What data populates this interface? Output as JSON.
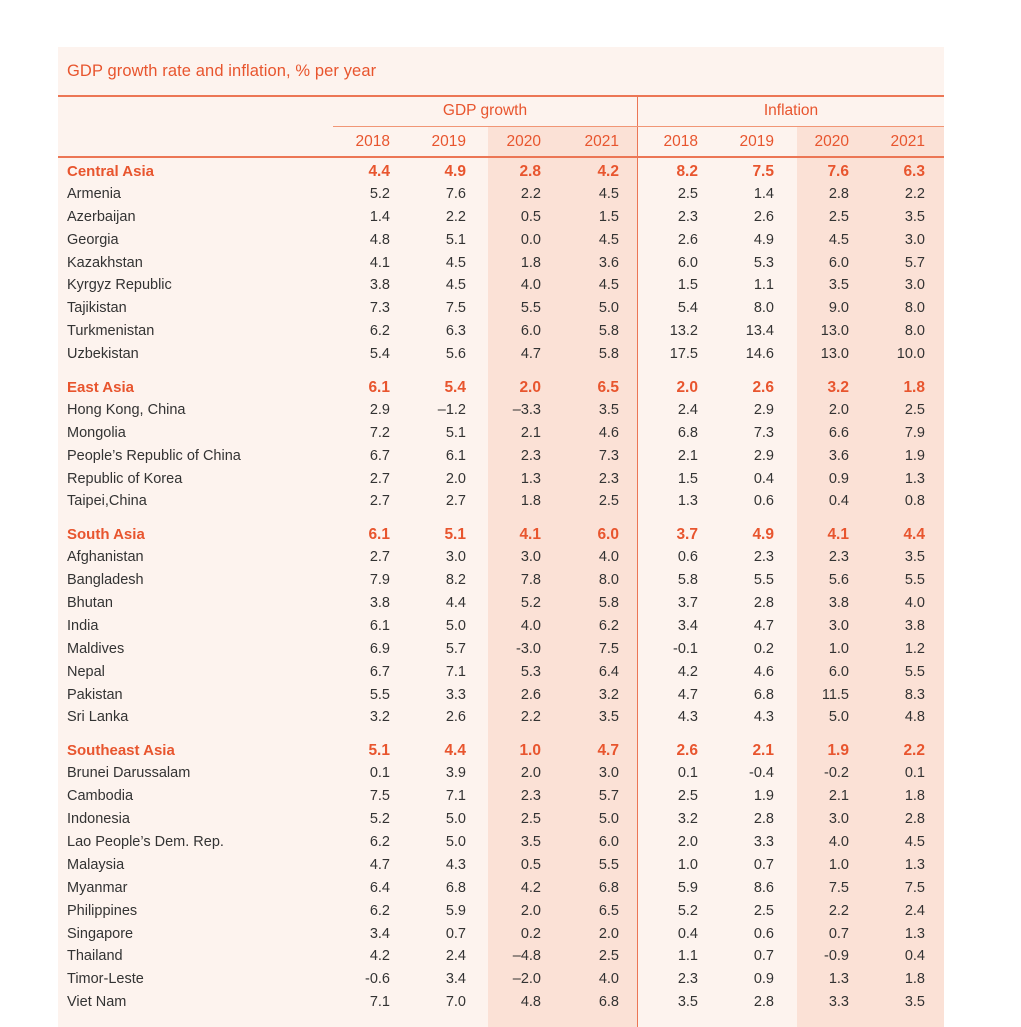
{
  "title": "GDP growth rate and inflation, % per year",
  "groups": {
    "gdp": "GDP growth",
    "inflation": "Inflation"
  },
  "years": [
    "2018",
    "2019",
    "2020",
    "2021",
    "2018",
    "2019",
    "2020",
    "2021"
  ],
  "colors": {
    "accent": "#e8552e",
    "panel_bg": "#fdf3ee",
    "shade_bg": "#fbe1d6",
    "text": "#333333"
  },
  "rows": [
    {
      "name": "Central Asia",
      "region": true,
      "values": [
        "4.4",
        "4.9",
        "2.8",
        "4.2",
        "8.2",
        "7.5",
        "7.6",
        "6.3"
      ]
    },
    {
      "name": "Armenia",
      "values": [
        "5.2",
        "7.6",
        "2.2",
        "4.5",
        "2.5",
        "1.4",
        "2.8",
        "2.2"
      ]
    },
    {
      "name": "Azerbaijan",
      "values": [
        "1.4",
        "2.2",
        "0.5",
        "1.5",
        "2.3",
        "2.6",
        "2.5",
        "3.5"
      ]
    },
    {
      "name": "Georgia",
      "values": [
        "4.8",
        "5.1",
        "0.0",
        "4.5",
        "2.6",
        "4.9",
        "4.5",
        "3.0"
      ]
    },
    {
      "name": "Kazakhstan",
      "values": [
        "4.1",
        "4.5",
        "1.8",
        "3.6",
        "6.0",
        "5.3",
        "6.0",
        "5.7"
      ]
    },
    {
      "name": "Kyrgyz Republic",
      "values": [
        "3.8",
        "4.5",
        "4.0",
        "4.5",
        "1.5",
        "1.1",
        "3.5",
        "3.0"
      ]
    },
    {
      "name": "Tajikistan",
      "values": [
        "7.3",
        "7.5",
        "5.5",
        "5.0",
        "5.4",
        "8.0",
        "9.0",
        "8.0"
      ]
    },
    {
      "name": "Turkmenistan",
      "values": [
        "6.2",
        "6.3",
        "6.0",
        "5.8",
        "13.2",
        "13.4",
        "13.0",
        "8.0"
      ]
    },
    {
      "name": "Uzbekistan",
      "values": [
        "5.4",
        "5.6",
        "4.7",
        "5.8",
        "17.5",
        "14.6",
        "13.0",
        "10.0"
      ]
    },
    {
      "name": "East Asia",
      "region": true,
      "values": [
        "6.1",
        "5.4",
        "2.0",
        "6.5",
        "2.0",
        "2.6",
        "3.2",
        "1.8"
      ]
    },
    {
      "name": "Hong Kong, China",
      "values": [
        "2.9",
        "–1.2",
        "–3.3",
        "3.5",
        "2.4",
        "2.9",
        "2.0",
        "2.5"
      ]
    },
    {
      "name": "Mongolia",
      "values": [
        "7.2",
        "5.1",
        "2.1",
        "4.6",
        "6.8",
        "7.3",
        "6.6",
        "7.9"
      ]
    },
    {
      "name": "People’s Republic of China",
      "values": [
        "6.7",
        "6.1",
        "2.3",
        "7.3",
        "2.1",
        "2.9",
        "3.6",
        "1.9"
      ]
    },
    {
      "name": "Republic of Korea",
      "values": [
        "2.7",
        "2.0",
        "1.3",
        "2.3",
        "1.5",
        "0.4",
        "0.9",
        "1.3"
      ]
    },
    {
      "name": "Taipei,China",
      "values": [
        "2.7",
        "2.7",
        "1.8",
        "2.5",
        "1.3",
        "0.6",
        "0.4",
        "0.8"
      ]
    },
    {
      "name": "South Asia",
      "region": true,
      "values": [
        "6.1",
        "5.1",
        "4.1",
        "6.0",
        "3.7",
        "4.9",
        "4.1",
        "4.4"
      ]
    },
    {
      "name": "Afghanistan",
      "values": [
        "2.7",
        "3.0",
        "3.0",
        "4.0",
        "0.6",
        "2.3",
        "2.3",
        "3.5"
      ]
    },
    {
      "name": "Bangladesh",
      "values": [
        "7.9",
        "8.2",
        "7.8",
        "8.0",
        "5.8",
        "5.5",
        "5.6",
        "5.5"
      ]
    },
    {
      "name": "Bhutan",
      "values": [
        "3.8",
        "4.4",
        "5.2",
        "5.8",
        "3.7",
        "2.8",
        "3.8",
        "4.0"
      ]
    },
    {
      "name": "India",
      "values": [
        "6.1",
        "5.0",
        "4.0",
        "6.2",
        "3.4",
        "4.7",
        "3.0",
        "3.8"
      ]
    },
    {
      "name": "Maldives",
      "values": [
        "6.9",
        "5.7",
        "-3.0",
        "7.5",
        "-0.1",
        "0.2",
        "1.0",
        "1.2"
      ]
    },
    {
      "name": "Nepal",
      "values": [
        "6.7",
        "7.1",
        "5.3",
        "6.4",
        "4.2",
        "4.6",
        "6.0",
        "5.5"
      ]
    },
    {
      "name": "Pakistan",
      "values": [
        "5.5",
        "3.3",
        "2.6",
        "3.2",
        "4.7",
        "6.8",
        "11.5",
        "8.3"
      ]
    },
    {
      "name": "Sri Lanka",
      "values": [
        "3.2",
        "2.6",
        "2.2",
        "3.5",
        "4.3",
        "4.3",
        "5.0",
        "4.8"
      ]
    },
    {
      "name": "Southeast Asia",
      "region": true,
      "values": [
        "5.1",
        "4.4",
        "1.0",
        "4.7",
        "2.6",
        "2.1",
        "1.9",
        "2.2"
      ]
    },
    {
      "name": "Brunei Darussalam",
      "values": [
        "0.1",
        "3.9",
        "2.0",
        "3.0",
        "0.1",
        "-0.4",
        "-0.2",
        "0.1"
      ]
    },
    {
      "name": "Cambodia",
      "values": [
        "7.5",
        "7.1",
        "2.3",
        "5.7",
        "2.5",
        "1.9",
        "2.1",
        "1.8"
      ]
    },
    {
      "name": "Indonesia",
      "values": [
        "5.2",
        "5.0",
        "2.5",
        "5.0",
        "3.2",
        "2.8",
        "3.0",
        "2.8"
      ]
    },
    {
      "name": "Lao People’s Dem. Rep.",
      "values": [
        "6.2",
        "5.0",
        "3.5",
        "6.0",
        "2.0",
        "3.3",
        "4.0",
        "4.5"
      ]
    },
    {
      "name": "Malaysia",
      "values": [
        "4.7",
        "4.3",
        "0.5",
        "5.5",
        "1.0",
        "0.7",
        "1.0",
        "1.3"
      ]
    },
    {
      "name": "Myanmar",
      "values": [
        "6.4",
        "6.8",
        "4.2",
        "6.8",
        "5.9",
        "8.6",
        "7.5",
        "7.5"
      ]
    },
    {
      "name": "Philippines",
      "values": [
        "6.2",
        "5.9",
        "2.0",
        "6.5",
        "5.2",
        "2.5",
        "2.2",
        "2.4"
      ]
    },
    {
      "name": "Singapore",
      "values": [
        "3.4",
        "0.7",
        "0.2",
        "2.0",
        "0.4",
        "0.6",
        "0.7",
        "1.3"
      ]
    },
    {
      "name": "Thailand",
      "values": [
        "4.2",
        "2.4",
        "–4.8",
        "2.5",
        "1.1",
        "0.7",
        "-0.9",
        "0.4"
      ]
    },
    {
      "name": "Timor-Leste",
      "values": [
        "-0.6",
        "3.4",
        "–2.0",
        "4.0",
        "2.3",
        "0.9",
        "1.3",
        "1.8"
      ]
    },
    {
      "name": "Viet Nam",
      "values": [
        "7.1",
        "7.0",
        "4.8",
        "6.8",
        "3.5",
        "2.8",
        "3.3",
        "3.5"
      ]
    }
  ]
}
